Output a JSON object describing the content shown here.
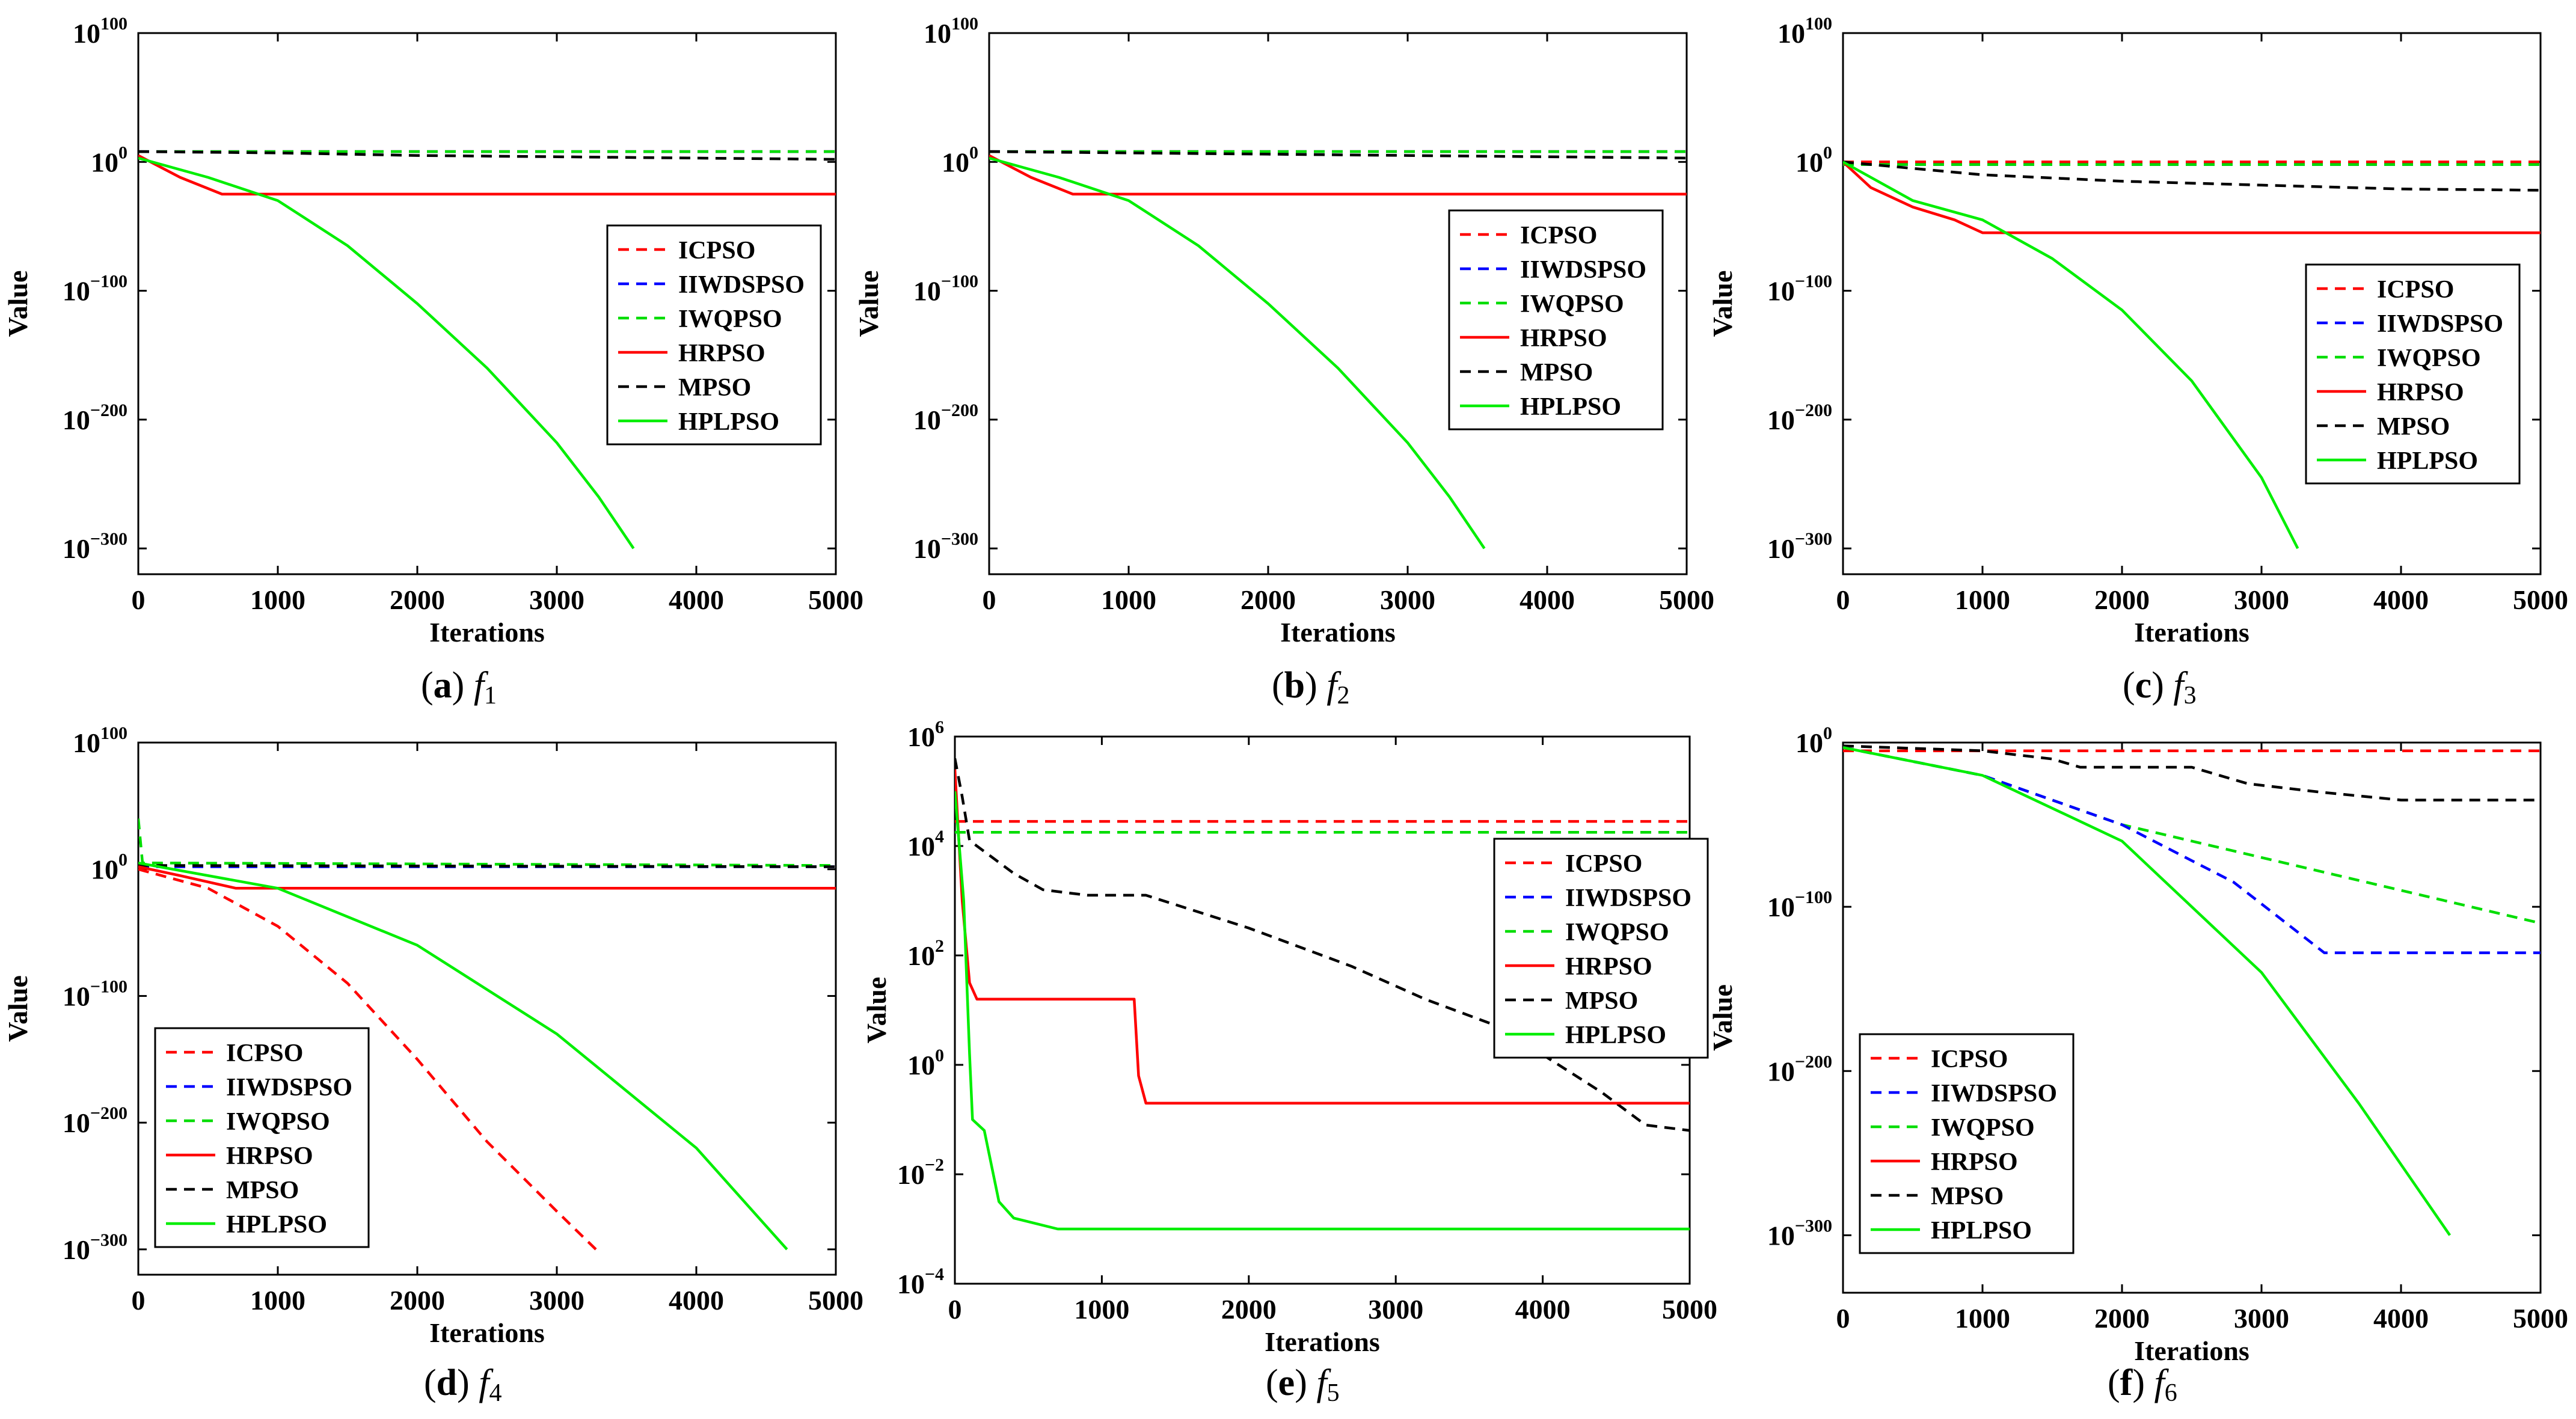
{
  "figure": {
    "series_names": [
      "ICPSO",
      "IIWDSPSO",
      "IWQPSO",
      "HRPSO",
      "MPSO",
      "HPLPSO"
    ],
    "series_colors": {
      "ICPSO": "#ff0000",
      "IIWDSPSO": "#0000ff",
      "IWQPSO": "#00dd00",
      "HRPSO": "#ff0000",
      "MPSO": "#000000",
      "HPLPSO": "#00ee00"
    },
    "series_dashed": {
      "ICPSO": true,
      "IIWDSPSO": true,
      "IWQPSO": true,
      "HRPSO": false,
      "MPSO": true,
      "HPLPSO": false
    }
  },
  "chart_data": [
    {
      "id": "a",
      "type": "line",
      "caption": {
        "letter": "a",
        "func": "f",
        "sub": "1"
      },
      "xlabel": "Iterations",
      "ylabel": "Value",
      "xlim": [
        0,
        5000
      ],
      "xticks": [
        0,
        1000,
        2000,
        3000,
        4000,
        5000
      ],
      "yscale": "log",
      "ylim_exp": [
        -320,
        100
      ],
      "yticks": [
        {
          "base": "10",
          "exp": "100"
        },
        {
          "base": "10",
          "exp": "0",
          "text": "1"
        },
        {
          "base": "10",
          "exp": "−100"
        },
        {
          "base": "10",
          "exp": "−200"
        },
        {
          "base": "10",
          "exp": "−300"
        }
      ],
      "ytick_exps": [
        100,
        0,
        -100,
        -200,
        -300
      ],
      "legend": "center-right",
      "series": [
        {
          "name": "ICPSO",
          "x": [
            0,
            5000
          ],
          "y_exp": [
            8,
            8
          ]
        },
        {
          "name": "IIWDSPSO",
          "x": [
            0,
            5000
          ],
          "y_exp": [
            8,
            8
          ]
        },
        {
          "name": "IWQPSO",
          "x": [
            0,
            5000
          ],
          "y_exp": [
            8,
            8
          ]
        },
        {
          "name": "HRPSO",
          "x": [
            0,
            300,
            600,
            1000,
            5000
          ],
          "y_exp": [
            5,
            -12,
            -25,
            -25,
            -25
          ]
        },
        {
          "name": "MPSO",
          "x": [
            0,
            1000,
            2000,
            3000,
            4000,
            5000
          ],
          "y_exp": [
            8,
            7,
            5,
            4,
            3,
            2
          ]
        },
        {
          "name": "HPLPSO",
          "x": [
            0,
            500,
            1000,
            1500,
            2000,
            2500,
            3000,
            3300,
            3550
          ],
          "y_exp": [
            3,
            -12,
            -30,
            -65,
            -110,
            -160,
            -218,
            -260,
            -300
          ]
        }
      ]
    },
    {
      "id": "b",
      "type": "line",
      "caption": {
        "letter": "b",
        "func": "f",
        "sub": "2"
      },
      "xlabel": "Iterations",
      "ylabel": "Value",
      "xlim": [
        0,
        5000
      ],
      "xticks": [
        0,
        1000,
        2000,
        3000,
        4000,
        5000
      ],
      "yscale": "log",
      "ylim_exp": [
        -320,
        100
      ],
      "yticks": [
        {
          "base": "10",
          "exp": "100"
        },
        {
          "base": "10",
          "exp": "0",
          "text": "1"
        },
        {
          "base": "10",
          "exp": "−100"
        },
        {
          "base": "10",
          "exp": "−200"
        },
        {
          "base": "10",
          "exp": "−300"
        }
      ],
      "ytick_exps": [
        100,
        0,
        -100,
        -200,
        -300
      ],
      "legend": "center-right",
      "series": [
        {
          "name": "ICPSO",
          "x": [
            0,
            5000
          ],
          "y_exp": [
            8,
            8
          ]
        },
        {
          "name": "IIWDSPSO",
          "x": [
            0,
            5000
          ],
          "y_exp": [
            8,
            8
          ]
        },
        {
          "name": "IWQPSO",
          "x": [
            0,
            5000
          ],
          "y_exp": [
            8,
            8
          ]
        },
        {
          "name": "HRPSO",
          "x": [
            0,
            300,
            600,
            1000,
            5000
          ],
          "y_exp": [
            5,
            -12,
            -25,
            -25,
            -25
          ]
        },
        {
          "name": "MPSO",
          "x": [
            0,
            1000,
            2000,
            3000,
            4000,
            5000
          ],
          "y_exp": [
            8,
            7,
            6,
            5,
            4,
            3
          ]
        },
        {
          "name": "HPLPSO",
          "x": [
            0,
            500,
            1000,
            1500,
            2000,
            2500,
            3000,
            3300,
            3550
          ],
          "y_exp": [
            3,
            -12,
            -30,
            -65,
            -110,
            -160,
            -218,
            -260,
            -300
          ]
        }
      ]
    },
    {
      "id": "c",
      "type": "line",
      "caption": {
        "letter": "c",
        "func": "f",
        "sub": "3"
      },
      "xlabel": "Iterations",
      "ylabel": "Value",
      "xlim": [
        0,
        5000
      ],
      "xticks": [
        0,
        1000,
        2000,
        3000,
        4000,
        5000
      ],
      "yscale": "log",
      "ylim_exp": [
        -320,
        100
      ],
      "yticks": [
        {
          "base": "10",
          "exp": "100"
        },
        {
          "base": "10",
          "exp": "0",
          "text": "1"
        },
        {
          "base": "10",
          "exp": "−100"
        },
        {
          "base": "10",
          "exp": "−200"
        },
        {
          "base": "10",
          "exp": "−300"
        }
      ],
      "ytick_exps": [
        100,
        0,
        -100,
        -200,
        -300
      ],
      "legend": "right",
      "series": [
        {
          "name": "ICPSO",
          "x": [
            0,
            5000
          ],
          "y_exp": [
            0,
            0
          ]
        },
        {
          "name": "IIWDSPSO",
          "x": [
            0,
            5000
          ],
          "y_exp": [
            -2,
            -2
          ]
        },
        {
          "name": "IWQPSO",
          "x": [
            0,
            5000
          ],
          "y_exp": [
            -2,
            -2
          ]
        },
        {
          "name": "HRPSO",
          "x": [
            0,
            200,
            500,
            800,
            1000,
            5000
          ],
          "y_exp": [
            0,
            -20,
            -35,
            -45,
            -55,
            -55
          ]
        },
        {
          "name": "MPSO",
          "x": [
            0,
            500,
            1000,
            2000,
            3000,
            4000,
            5000
          ],
          "y_exp": [
            0,
            -5,
            -10,
            -15,
            -18,
            -21,
            -22
          ]
        },
        {
          "name": "HPLPSO",
          "x": [
            0,
            500,
            1000,
            1500,
            2000,
            2500,
            3000,
            3260
          ],
          "y_exp": [
            0,
            -30,
            -45,
            -75,
            -115,
            -170,
            -245,
            -300
          ]
        }
      ]
    },
    {
      "id": "d",
      "type": "line",
      "caption": {
        "letter": "d",
        "func": "f",
        "sub": "4"
      },
      "xlabel": "Iterations",
      "ylabel": "Value",
      "xlim": [
        0,
        5000
      ],
      "xticks": [
        0,
        1000,
        2000,
        3000,
        4000,
        5000
      ],
      "yscale": "log",
      "ylim_exp": [
        -320,
        100
      ],
      "yticks": [
        {
          "base": "10",
          "exp": "100"
        },
        {
          "base": "10",
          "exp": "0",
          "text": "1"
        },
        {
          "base": "10",
          "exp": "−100"
        },
        {
          "base": "10",
          "exp": "−200"
        },
        {
          "base": "10",
          "exp": "−300"
        }
      ],
      "ytick_exps": [
        100,
        0,
        -100,
        -200,
        -300
      ],
      "legend": "bottom-left",
      "series": [
        {
          "name": "IIWDSPSO",
          "x": [
            0,
            5000
          ],
          "y_exp": [
            2,
            2
          ]
        },
        {
          "name": "IWQPSO",
          "x": [
            0,
            30,
            5000
          ],
          "y_exp": [
            40,
            5,
            3
          ]
        },
        {
          "name": "MPSO",
          "x": [
            0,
            5000
          ],
          "y_exp": [
            3,
            2
          ]
        },
        {
          "name": "HRPSO",
          "x": [
            0,
            300,
            700,
            5000
          ],
          "y_exp": [
            2,
            -5,
            -15,
            -15
          ]
        },
        {
          "name": "ICPSO",
          "x": [
            0,
            500,
            1000,
            1500,
            2000,
            2500,
            3000,
            3280
          ],
          "y_exp": [
            0,
            -15,
            -45,
            -90,
            -150,
            -215,
            -270,
            -300
          ]
        },
        {
          "name": "HPLPSO",
          "x": [
            0,
            1000,
            2000,
            3000,
            4000,
            4650
          ],
          "y_exp": [
            5,
            -15,
            -60,
            -130,
            -220,
            -300
          ]
        }
      ]
    },
    {
      "id": "e",
      "type": "line",
      "caption": {
        "letter": "e",
        "func": "f",
        "sub": "5"
      },
      "xlabel": "Iterations",
      "ylabel": "Value",
      "xlim": [
        0,
        5000
      ],
      "xticks": [
        0,
        1000,
        2000,
        3000,
        4000,
        5000
      ],
      "yscale": "log",
      "ylim_exp": [
        -4,
        6
      ],
      "yticks": [
        {
          "base": "10",
          "exp": "6"
        },
        {
          "base": "10",
          "exp": "4"
        },
        {
          "base": "10",
          "exp": "2"
        },
        {
          "base": "10",
          "exp": "0"
        },
        {
          "base": "10",
          "exp": "−2"
        },
        {
          "base": "10",
          "exp": "−4"
        }
      ],
      "ytick_exps": [
        6,
        4,
        2,
        0,
        -2,
        -4
      ],
      "legend": "right",
      "series": [
        {
          "name": "ICPSO",
          "x": [
            0,
            5000
          ],
          "y_exp": [
            4.45,
            4.45
          ]
        },
        {
          "name": "IIWDSPSO",
          "x": [
            0,
            5000
          ],
          "y_exp": [
            4.25,
            4.25
          ]
        },
        {
          "name": "IWQPSO",
          "x": [
            0,
            5000
          ],
          "y_exp": [
            4.25,
            4.25
          ]
        },
        {
          "name": "MPSO",
          "x": [
            0,
            50,
            100,
            400,
            600,
            900,
            1300,
            2000,
            2700,
            3200,
            3700,
            4400,
            4700,
            5000
          ],
          "y_exp": [
            5.6,
            4.9,
            4.1,
            3.5,
            3.2,
            3.1,
            3.1,
            2.5,
            1.8,
            1.2,
            0.7,
            -0.5,
            -1.1,
            -1.2
          ]
        },
        {
          "name": "HRPSO",
          "x": [
            0,
            50,
            100,
            150,
            1220,
            1250,
            1300,
            5000
          ],
          "y_exp": [
            5.4,
            3.0,
            1.5,
            1.2,
            1.2,
            -0.2,
            -0.7,
            -0.7
          ]
        },
        {
          "name": "HPLPSO",
          "x": [
            0,
            60,
            100,
            120,
            200,
            300,
            400,
            700,
            1000,
            5000
          ],
          "y_exp": [
            5.0,
            3.0,
            0.2,
            -1.0,
            -1.2,
            -2.5,
            -2.8,
            -3.0,
            -3.0,
            -3.0
          ]
        }
      ]
    },
    {
      "id": "f",
      "type": "line",
      "caption": {
        "letter": "f",
        "func": "f",
        "sub": "6"
      },
      "xlabel": "Iterations",
      "ylabel": "Value",
      "xlim": [
        0,
        5000
      ],
      "xticks": [
        0,
        1000,
        2000,
        3000,
        4000,
        5000
      ],
      "yscale": "log",
      "ylim_exp": [
        -335,
        0
      ],
      "yticks": [
        {
          "base": "10",
          "exp": "0",
          "text": "1"
        },
        {
          "base": "10",
          "exp": "−100"
        },
        {
          "base": "10",
          "exp": "−200"
        },
        {
          "base": "10",
          "exp": "−300"
        }
      ],
      "ytick_exps": [
        0,
        -100,
        -200,
        -300
      ],
      "legend": "bottom-left",
      "series": [
        {
          "name": "ICPSO",
          "x": [
            0,
            5000
          ],
          "y_exp": [
            -5,
            -5
          ]
        },
        {
          "name": "MPSO",
          "x": [
            0,
            1000,
            1500,
            1700,
            2500,
            2900,
            3400,
            4000,
            5000
          ],
          "y_exp": [
            -2,
            -5,
            -10,
            -15,
            -15,
            -25,
            -30,
            -35,
            -35
          ]
        },
        {
          "name": "IWQPSO",
          "x": [
            0,
            1000,
            2000,
            3000,
            4000,
            5000
          ],
          "y_exp": [
            -3,
            -20,
            -50,
            -70,
            -90,
            -110
          ]
        },
        {
          "name": "IIWDSPSO",
          "x": [
            0,
            1000,
            2000,
            2800,
            3450,
            5000
          ],
          "y_exp": [
            -3,
            -20,
            -50,
            -85,
            -128,
            -128
          ]
        },
        {
          "name": "HPLPSO",
          "x": [
            0,
            1000,
            2000,
            3000,
            3700,
            4350
          ],
          "y_exp": [
            -3,
            -20,
            -60,
            -140,
            -220,
            -300
          ]
        }
      ]
    }
  ]
}
